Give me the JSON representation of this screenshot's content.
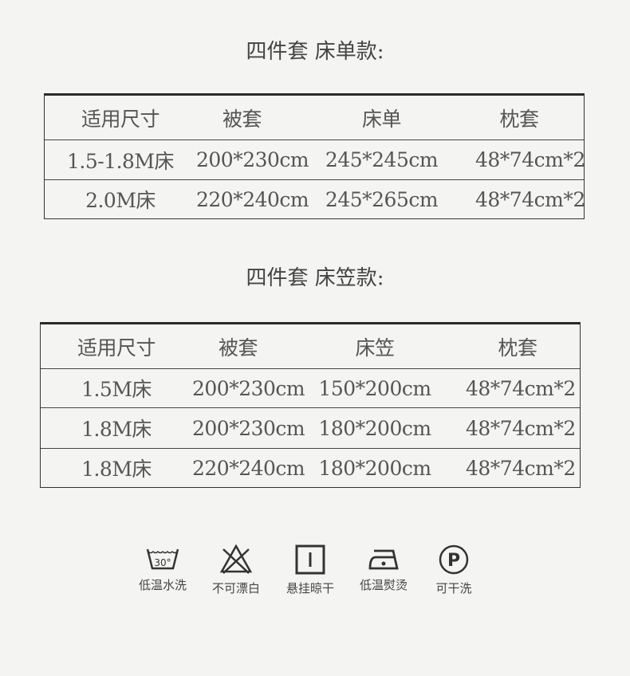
{
  "section1": {
    "title": "四件套 床单款:",
    "headers": [
      "适用尺寸",
      "被套",
      "床单",
      "枕套"
    ],
    "rows": [
      [
        "1.5-1.8M床",
        "200*230cm",
        "245*245cm",
        "48*74cm*2"
      ],
      [
        "2.0M床",
        "220*240cm",
        "245*265cm",
        "48*74cm*2"
      ]
    ]
  },
  "section2": {
    "title": "四件套 床笠款:",
    "headers": [
      "适用尺寸",
      "被套",
      "床笠",
      "枕套"
    ],
    "rows": [
      [
        "1.5M床",
        "200*230cm",
        "150*200cm",
        "48*74cm*2"
      ],
      [
        "1.8M床",
        "200*230cm",
        "180*200cm",
        "48*74cm*2"
      ],
      [
        "1.8M床",
        "220*240cm",
        "180*200cm",
        "48*74cm*2"
      ]
    ]
  },
  "care": [
    {
      "icon": "wash-30-icon",
      "label": "低温水洗",
      "temp": "30°"
    },
    {
      "icon": "no-bleach-icon",
      "label": "不可漂白"
    },
    {
      "icon": "hang-dry-icon",
      "label": "悬挂晾干"
    },
    {
      "icon": "low-iron-icon",
      "label": "低温熨烫"
    },
    {
      "icon": "dry-clean-icon",
      "label": "可干洗",
      "letter": "P"
    }
  ]
}
